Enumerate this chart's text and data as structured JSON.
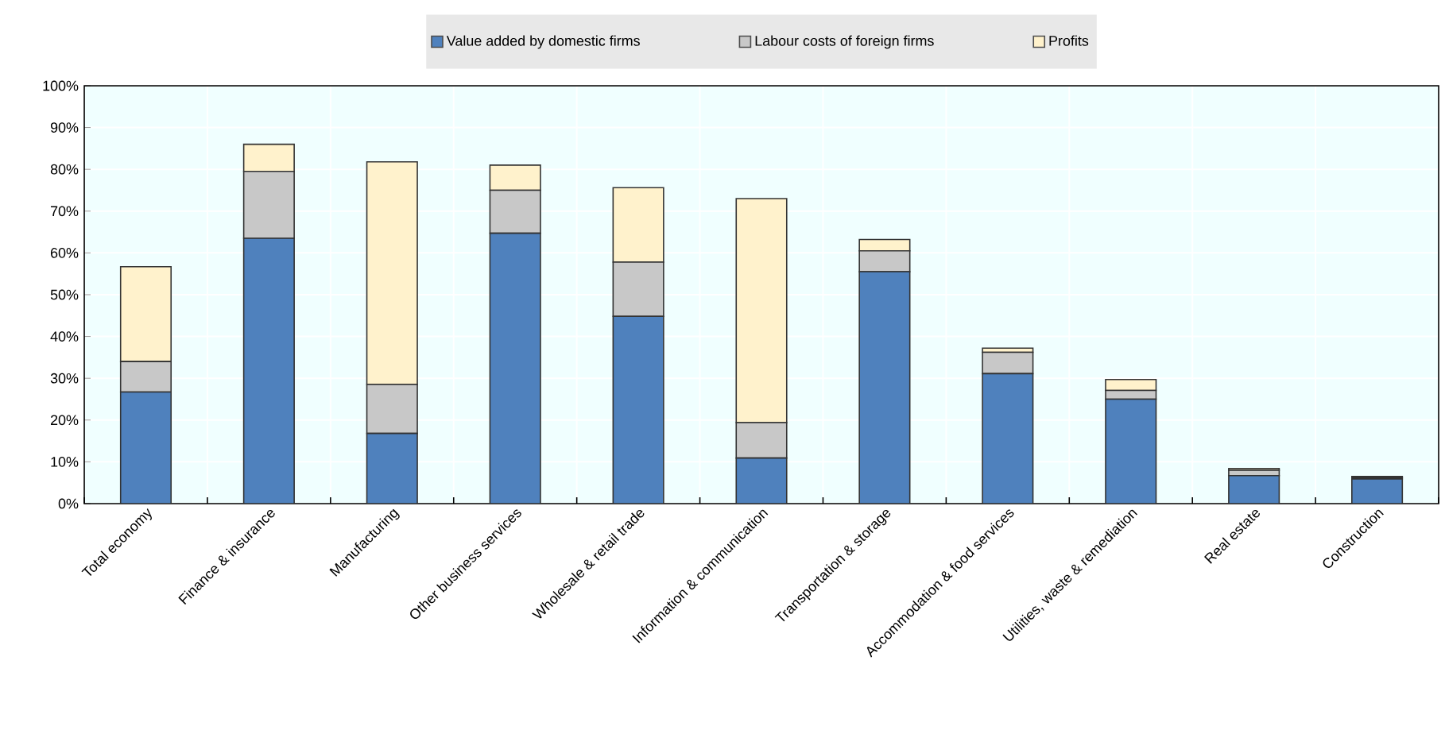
{
  "chart_data": {
    "type": "bar",
    "stacked": true,
    "categories": [
      "Total economy",
      "Finance & insurance",
      "Manufacturing",
      "Other business services",
      "Wholesale & retail trade",
      "Information & communication",
      "Transportation & storage",
      "Accommodation & food services",
      "Utilities, waste & remediation",
      "Real estate",
      "Construction"
    ],
    "series": [
      {
        "name": "Value added by domestic firms",
        "color": "#4f81bd",
        "values": [
          26.7,
          63.5,
          16.8,
          64.7,
          44.8,
          10.9,
          55.5,
          31.1,
          25.0,
          6.7,
          5.9
        ]
      },
      {
        "name": "Labour costs of foreign firms",
        "color": "#c8c8c8",
        "values": [
          7.3,
          16.0,
          11.7,
          10.3,
          13.0,
          8.5,
          5.0,
          5.1,
          2.1,
          1.3,
          0.3
        ]
      },
      {
        "name": "Profits",
        "color": "#fff2cc",
        "values": [
          22.7,
          6.5,
          53.3,
          6.0,
          17.8,
          53.6,
          2.7,
          1.0,
          2.6,
          0.4,
          0.3
        ]
      }
    ],
    "ylim": [
      0,
      100
    ],
    "yticks": [
      {
        "value": 0,
        "label": "0%"
      },
      {
        "value": 10,
        "label": "10%"
      },
      {
        "value": 20,
        "label": "20%"
      },
      {
        "value": 30,
        "label": "30%"
      },
      {
        "value": 40,
        "label": "40%"
      },
      {
        "value": 50,
        "label": "50%"
      },
      {
        "value": 60,
        "label": "60%"
      },
      {
        "value": 70,
        "label": "70%"
      },
      {
        "value": 80,
        "label": "80%"
      },
      {
        "value": 90,
        "label": "90%"
      },
      {
        "value": 100,
        "label": "100%"
      }
    ],
    "grid": true,
    "legend": "top"
  }
}
